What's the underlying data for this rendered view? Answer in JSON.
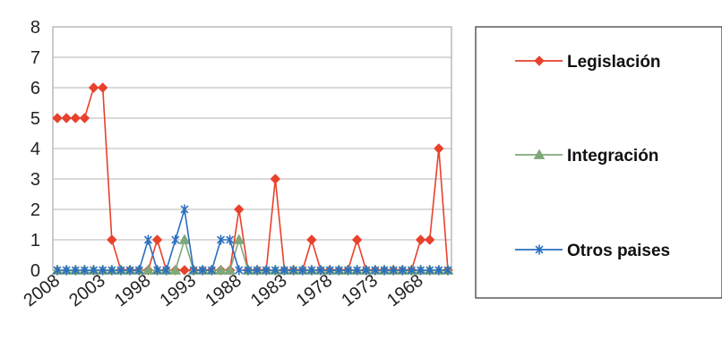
{
  "chart_data": {
    "type": "line",
    "x": [
      2008,
      2007,
      2006,
      2005,
      2004,
      2003,
      2002,
      2001,
      2000,
      1999,
      1998,
      1997,
      1996,
      1995,
      1994,
      1993,
      1992,
      1991,
      1990,
      1989,
      1988,
      1987,
      1986,
      1985,
      1984,
      1983,
      1982,
      1981,
      1980,
      1979,
      1978,
      1977,
      1976,
      1975,
      1974,
      1973,
      1972,
      1971,
      1970,
      1969,
      1968,
      1967,
      1966,
      1965
    ],
    "x_tick_labels": [
      "2008",
      "2003",
      "1998",
      "1993",
      "1988",
      "1983",
      "1978",
      "1973",
      "1968"
    ],
    "x_tick_values": [
      2008,
      2003,
      1998,
      1993,
      1988,
      1983,
      1978,
      1973,
      1968
    ],
    "xlim": [
      2008,
      1965
    ],
    "ylim": [
      0,
      8
    ],
    "y_ticks": [
      0,
      1,
      2,
      3,
      4,
      5,
      6,
      7,
      8
    ],
    "grid": "horizontal",
    "legend_position": "right",
    "series": [
      {
        "name": "Legislación",
        "color": "#e8412c",
        "marker": "diamond",
        "values": [
          5,
          5,
          5,
          5,
          6,
          6,
          1,
          0,
          0,
          0,
          0,
          1,
          0,
          0,
          0,
          0,
          0,
          0,
          0,
          0,
          2,
          0,
          0,
          0,
          3,
          0,
          0,
          0,
          1,
          0,
          0,
          0,
          0,
          1,
          0,
          0,
          0,
          0,
          0,
          0,
          1,
          1,
          4,
          0
        ]
      },
      {
        "name": "Integración",
        "color": "#7ea87a",
        "marker": "triangle",
        "values": [
          0,
          0,
          0,
          0,
          0,
          0,
          0,
          0,
          0,
          0,
          0,
          0,
          0,
          0,
          1,
          0,
          0,
          0,
          0,
          0,
          1,
          0,
          0,
          0,
          0,
          0,
          0,
          0,
          0,
          0,
          0,
          0,
          0,
          0,
          0,
          0,
          0,
          0,
          0,
          0,
          0,
          0,
          0,
          0
        ]
      },
      {
        "name": "Otros paises",
        "color": "#2a6fc0",
        "marker": "asterisk",
        "values": [
          0,
          0,
          0,
          0,
          0,
          0,
          0,
          0,
          0,
          0,
          1,
          0,
          0,
          1,
          2,
          0,
          0,
          0,
          1,
          1,
          0,
          0,
          0,
          0,
          0,
          0,
          0,
          0,
          0,
          0,
          0,
          0,
          0,
          0,
          0,
          0,
          0,
          0,
          0,
          0,
          0,
          0,
          0,
          0
        ]
      }
    ]
  }
}
